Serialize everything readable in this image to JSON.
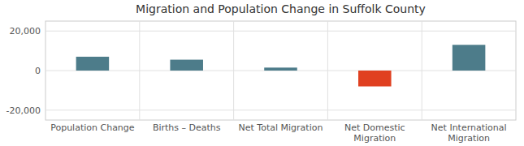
{
  "chart_data": {
    "type": "bar",
    "title": "Migration and Population Change in Suffolk County",
    "categories": [
      "Population Change",
      "Births – Deaths",
      "Net Total Migration",
      "Net Domestic\nMigration",
      "Net International\nMigration"
    ],
    "values": [
      7000,
      5500,
      1500,
      -8000,
      13000
    ],
    "colors": [
      "#4d7c8a",
      "#4d7c8a",
      "#4d7c8a",
      "#e04020",
      "#4d7c8a"
    ],
    "ylim": [
      -25000,
      25000
    ],
    "yticks": [
      {
        "value": -20000,
        "label": "-20,000"
      },
      0,
      {
        "value": 20000,
        "label": "20,000"
      }
    ],
    "grid": true
  }
}
